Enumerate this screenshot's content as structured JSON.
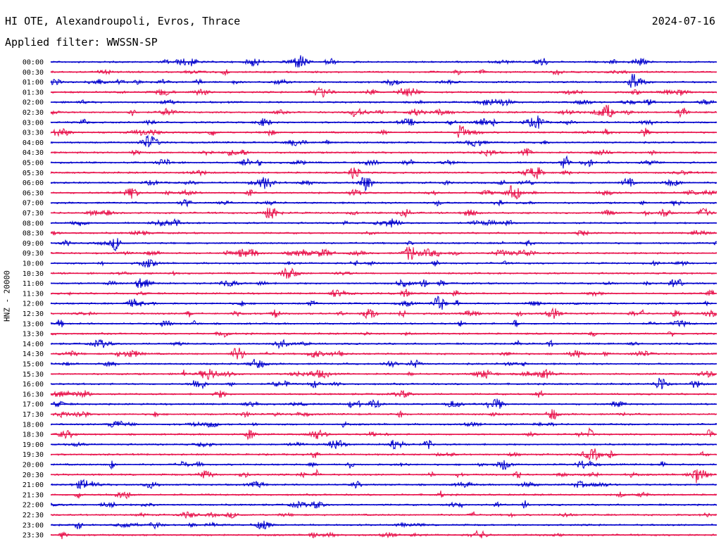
{
  "header": {
    "title": "HI OTE, Alexandroupoli, Evros, Thrace",
    "date": "2024-07-16",
    "filter": "Applied filter: WWSSN-SP"
  },
  "chart_data": {
    "type": "line",
    "title": "HI OTE, Alexandroupoli, Evros, Thrace",
    "subtitle": "Applied filter: WWSSN-SP",
    "ylabel": "HNZ - 20000",
    "xlabel": "",
    "row_labels": [
      "00:00",
      "00:30",
      "01:00",
      "01:30",
      "02:00",
      "02:30",
      "03:00",
      "03:30",
      "04:00",
      "04:30",
      "05:00",
      "05:30",
      "06:00",
      "06:30",
      "07:00",
      "07:30",
      "08:00",
      "08:30",
      "09:00",
      "09:30",
      "10:00",
      "10:30",
      "11:00",
      "11:30",
      "12:00",
      "12:30",
      "13:00",
      "13:30",
      "14:00",
      "14:30",
      "15:00",
      "15:30",
      "16:00",
      "16:30",
      "17:00",
      "17:30",
      "18:00",
      "18:30",
      "19:00",
      "19:30",
      "20:00",
      "20:30",
      "21:00",
      "21:30",
      "22:00",
      "22:30",
      "23:00",
      "23:30"
    ],
    "colors": [
      "#0000cc",
      "#e8134c"
    ],
    "grid": false,
    "legend": "none"
  }
}
